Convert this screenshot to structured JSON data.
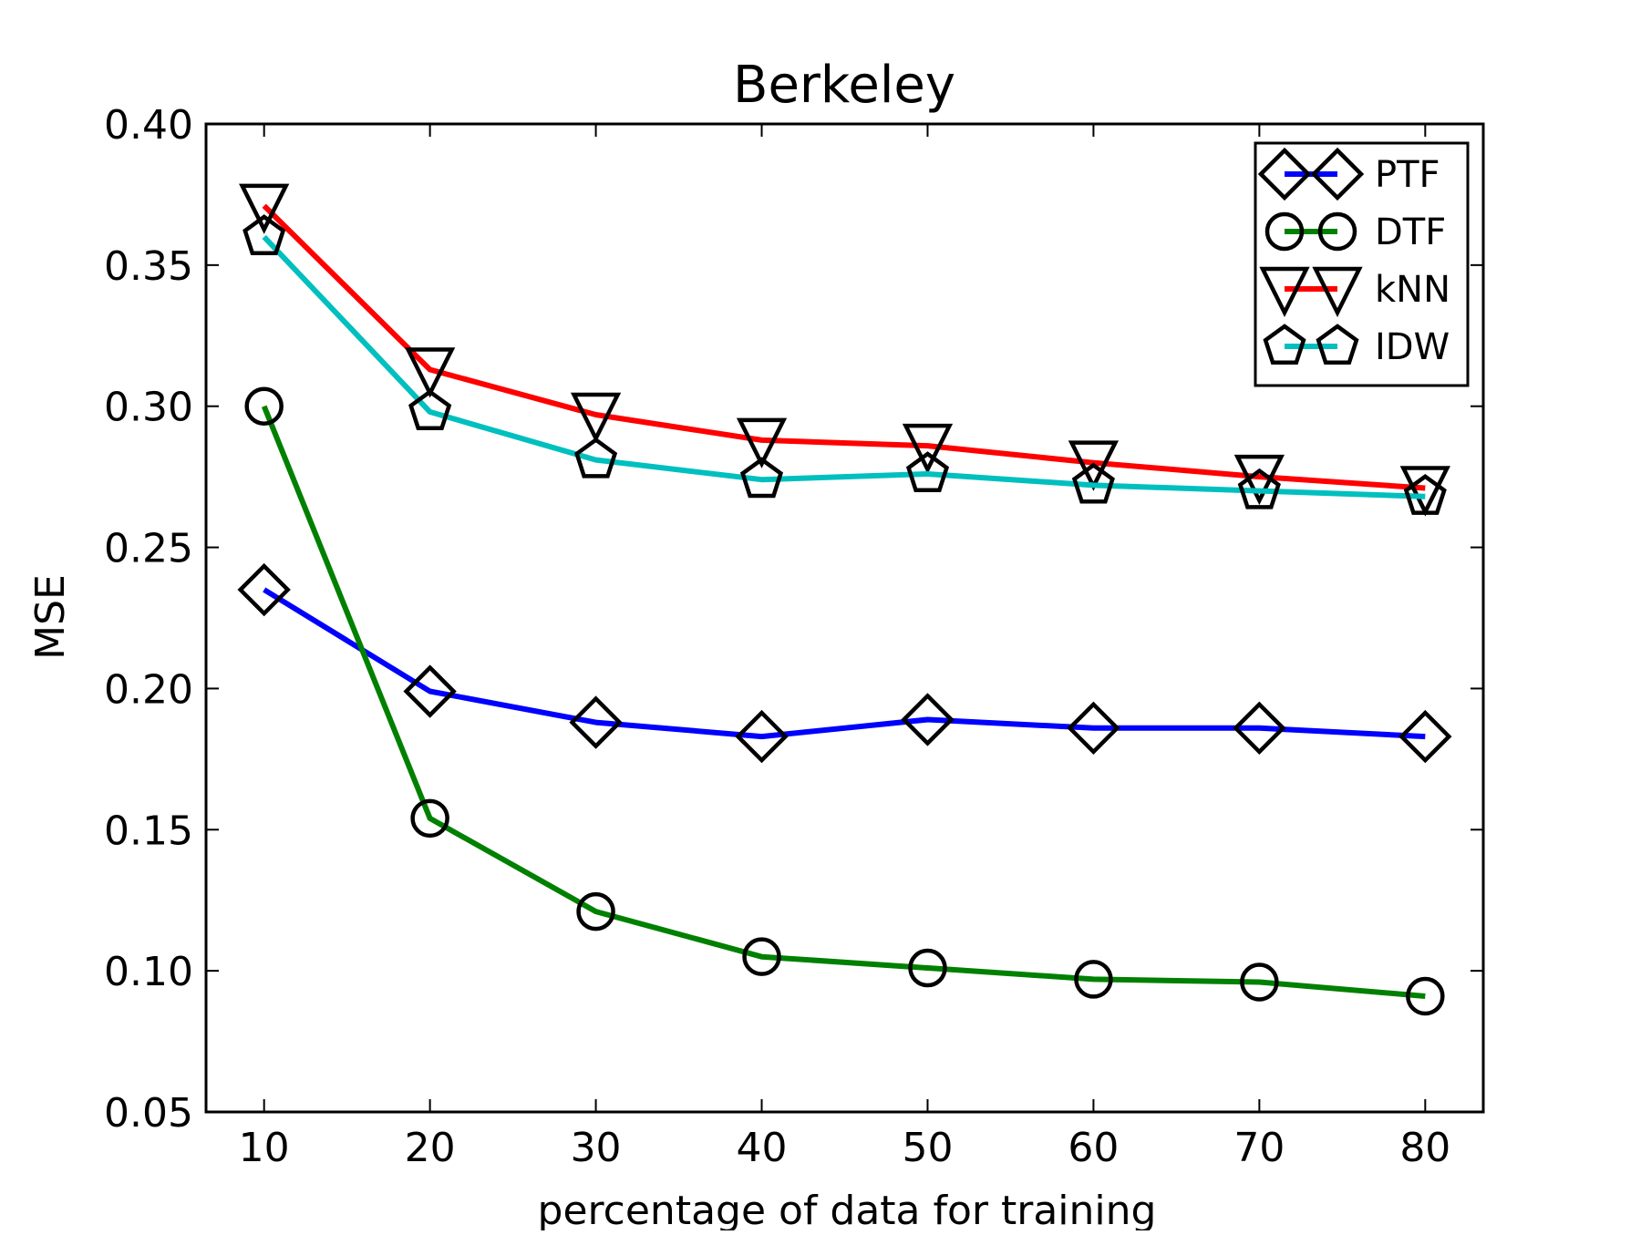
{
  "chart_data": {
    "type": "line",
    "title": "Berkeley",
    "xlabel": "percentage of data for training",
    "ylabel": "MSE",
    "xlim": [
      6.5,
      83.5
    ],
    "ylim": [
      0.05,
      0.4
    ],
    "x": [
      10,
      20,
      30,
      40,
      50,
      60,
      70,
      80
    ],
    "xticks": [
      "10",
      "20",
      "30",
      "40",
      "50",
      "60",
      "70",
      "80"
    ],
    "yticks": [
      "0.05",
      "0.10",
      "0.15",
      "0.20",
      "0.25",
      "0.30",
      "0.35",
      "0.40"
    ],
    "ytick_values": [
      0.05,
      0.1,
      0.15,
      0.2,
      0.25,
      0.3,
      0.35,
      0.4
    ],
    "grid": false,
    "legend_position": "top-right",
    "series": [
      {
        "name": "PTF",
        "color": "#0000ff",
        "marker": "diamond",
        "values": [
          0.235,
          0.199,
          0.188,
          0.183,
          0.189,
          0.186,
          0.186,
          0.183
        ]
      },
      {
        "name": "DTF",
        "color": "#008000",
        "marker": "circle",
        "values": [
          0.3,
          0.154,
          0.121,
          0.105,
          0.101,
          0.097,
          0.096,
          0.091
        ]
      },
      {
        "name": "kNN",
        "color": "#ff0000",
        "marker": "triangle-down",
        "values": [
          0.371,
          0.313,
          0.297,
          0.288,
          0.286,
          0.28,
          0.275,
          0.271
        ]
      },
      {
        "name": "IDW",
        "color": "#00bfbf",
        "marker": "pentagon",
        "values": [
          0.36,
          0.298,
          0.281,
          0.274,
          0.276,
          0.272,
          0.27,
          0.268
        ]
      }
    ]
  }
}
